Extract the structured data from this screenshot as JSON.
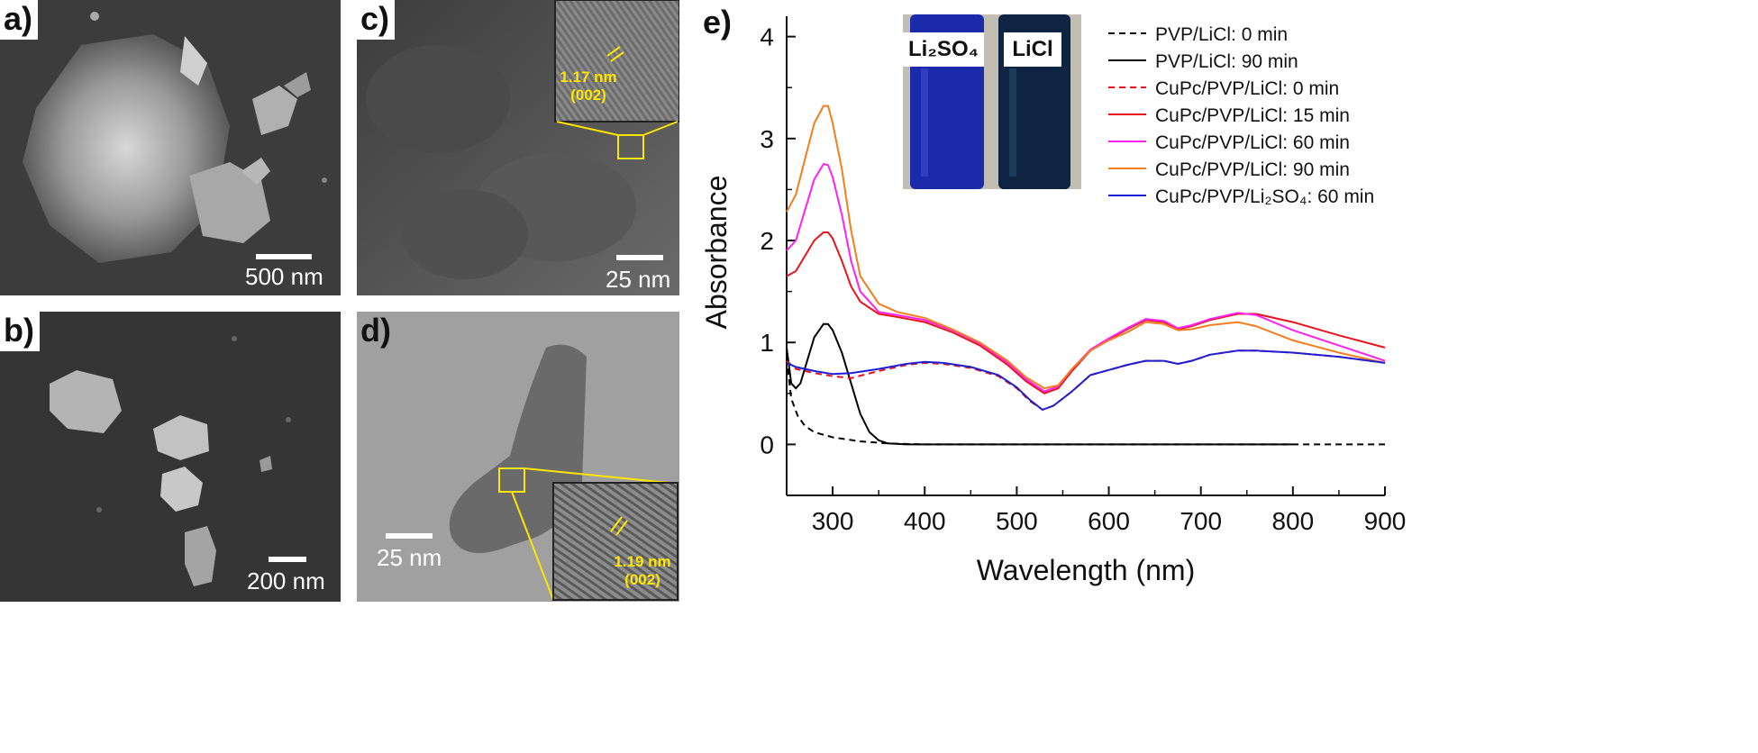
{
  "panels": {
    "a": {
      "label": "a)",
      "scale": "500 nm"
    },
    "b": {
      "label": "b)",
      "scale": "200 nm"
    },
    "c": {
      "label": "c)",
      "scale": "25 nm",
      "lattice": "1.17 nm",
      "plane": "(002)"
    },
    "d": {
      "label": "d)",
      "scale": "25 nm",
      "lattice": "1.19 nm",
      "plane": "(002)"
    },
    "e": {
      "label": "e)"
    }
  },
  "inset": {
    "left": "Li₂SO₄",
    "right": "LiCl"
  },
  "chart_data": {
    "type": "line",
    "xlabel": "Wavelength (nm)",
    "ylabel": "Absorbance",
    "xlim": [
      250,
      900
    ],
    "ylim": [
      -0.5,
      4.2
    ],
    "xticks": [
      300,
      400,
      500,
      600,
      700,
      800,
      900
    ],
    "yticks": [
      0,
      1,
      2,
      3,
      4
    ],
    "legend_position": "top-right",
    "series": [
      {
        "name": "PVP/LiCl: 0 min",
        "color": "#000000",
        "dash": true,
        "x": [
          250,
          255,
          262,
          270,
          280,
          300,
          330,
          360,
          400,
          500,
          600,
          700,
          800,
          900
        ],
        "y": [
          0.85,
          0.45,
          0.28,
          0.18,
          0.12,
          0.07,
          0.03,
          0.01,
          0.0,
          0.0,
          0.0,
          0.0,
          0.0,
          0.0
        ]
      },
      {
        "name": "PVP/LiCl: 90 min",
        "color": "#000000",
        "dash": false,
        "x": [
          250,
          255,
          260,
          265,
          270,
          280,
          290,
          295,
          300,
          310,
          320,
          330,
          340,
          350,
          360,
          380,
          400,
          500,
          600,
          700,
          800
        ],
        "y": [
          0.95,
          0.6,
          0.55,
          0.6,
          0.75,
          1.05,
          1.18,
          1.18,
          1.12,
          0.9,
          0.6,
          0.3,
          0.12,
          0.04,
          0.01,
          0.0,
          0.0,
          0.0,
          0.0,
          0.0,
          0.0
        ]
      },
      {
        "name": "CuPc/PVP/LiCl: 0 min",
        "color": "#e8141c",
        "dash": true,
        "x": [
          250,
          260,
          280,
          300,
          320,
          350,
          380,
          400,
          420,
          450,
          480,
          500,
          515,
          528,
          540,
          560,
          580,
          600,
          620,
          640,
          660,
          675,
          690,
          710,
          740,
          760,
          800,
          850,
          900
        ],
        "y": [
          0.82,
          0.74,
          0.7,
          0.67,
          0.65,
          0.72,
          0.78,
          0.8,
          0.79,
          0.75,
          0.67,
          0.55,
          0.42,
          0.34,
          0.38,
          0.52,
          0.68,
          0.73,
          0.78,
          0.82,
          0.82,
          0.79,
          0.82,
          0.88,
          0.92,
          0.92,
          0.9,
          0.86,
          0.8
        ]
      },
      {
        "name": "CuPc/PVP/LiCl: 15 min",
        "color": "#e8141c",
        "dash": false,
        "x": [
          250,
          260,
          270,
          280,
          290,
          295,
          300,
          310,
          320,
          330,
          350,
          370,
          400,
          430,
          460,
          490,
          510,
          530,
          545,
          560,
          580,
          600,
          620,
          640,
          660,
          675,
          690,
          710,
          740,
          760,
          800,
          850,
          900
        ],
        "y": [
          1.65,
          1.7,
          1.85,
          2.0,
          2.08,
          2.08,
          2.02,
          1.8,
          1.55,
          1.4,
          1.28,
          1.25,
          1.2,
          1.1,
          0.97,
          0.78,
          0.62,
          0.5,
          0.55,
          0.72,
          0.92,
          1.03,
          1.13,
          1.22,
          1.2,
          1.13,
          1.16,
          1.22,
          1.28,
          1.28,
          1.2,
          1.07,
          0.95
        ]
      },
      {
        "name": "CuPc/PVP/LiCl: 60 min",
        "color": "#ff22ee",
        "dash": false,
        "x": [
          250,
          260,
          270,
          280,
          290,
          295,
          300,
          310,
          320,
          330,
          350,
          370,
          400,
          430,
          460,
          490,
          510,
          530,
          545,
          560,
          580,
          600,
          620,
          640,
          660,
          675,
          690,
          710,
          740,
          760,
          800,
          850,
          900
        ],
        "y": [
          1.9,
          2.0,
          2.3,
          2.6,
          2.75,
          2.74,
          2.62,
          2.25,
          1.8,
          1.5,
          1.3,
          1.27,
          1.22,
          1.12,
          0.99,
          0.8,
          0.64,
          0.52,
          0.57,
          0.74,
          0.93,
          1.04,
          1.14,
          1.23,
          1.21,
          1.14,
          1.17,
          1.23,
          1.29,
          1.27,
          1.12,
          0.97,
          0.82
        ]
      },
      {
        "name": "CuPc/PVP/LiCl: 90 min",
        "color": "#f27e1e",
        "dash": false,
        "x": [
          250,
          260,
          270,
          280,
          290,
          295,
          300,
          310,
          320,
          330,
          350,
          370,
          400,
          430,
          460,
          490,
          510,
          530,
          545,
          560,
          580,
          600,
          620,
          640,
          660,
          675,
          690,
          710,
          740,
          760,
          800,
          850,
          900
        ],
        "y": [
          2.28,
          2.45,
          2.8,
          3.15,
          3.32,
          3.32,
          3.15,
          2.7,
          2.1,
          1.65,
          1.38,
          1.3,
          1.24,
          1.13,
          1.0,
          0.82,
          0.66,
          0.55,
          0.58,
          0.74,
          0.92,
          1.02,
          1.1,
          1.2,
          1.18,
          1.12,
          1.13,
          1.17,
          1.2,
          1.16,
          1.02,
          0.9,
          0.8
        ]
      },
      {
        "name": "CuPc/PVP/Li₂SO₄: 60 min",
        "color": "#1e1ed2",
        "dash": false,
        "x": [
          250,
          260,
          280,
          300,
          320,
          350,
          380,
          400,
          420,
          450,
          480,
          500,
          515,
          528,
          540,
          560,
          580,
          600,
          620,
          640,
          660,
          675,
          690,
          710,
          740,
          760,
          800,
          850,
          900
        ],
        "y": [
          0.8,
          0.76,
          0.72,
          0.69,
          0.7,
          0.74,
          0.79,
          0.81,
          0.8,
          0.76,
          0.68,
          0.56,
          0.43,
          0.34,
          0.38,
          0.52,
          0.68,
          0.73,
          0.78,
          0.82,
          0.82,
          0.79,
          0.82,
          0.88,
          0.92,
          0.92,
          0.9,
          0.86,
          0.8
        ]
      }
    ]
  }
}
